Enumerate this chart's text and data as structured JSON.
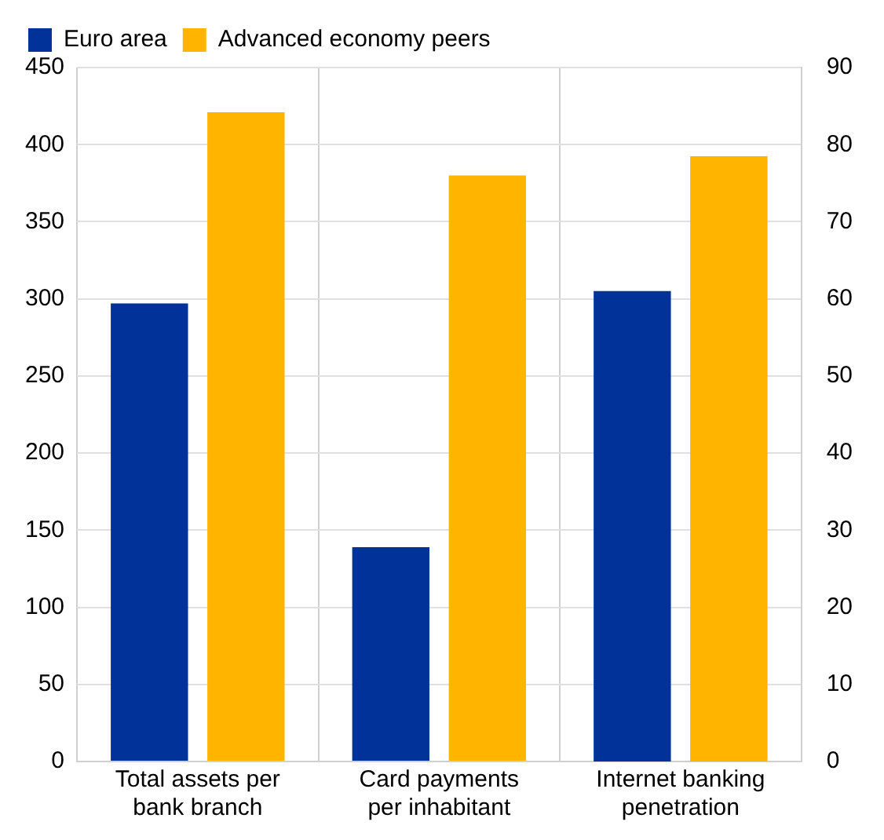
{
  "chart_data": {
    "type": "bar",
    "categories": [
      "Total assets per bank branch",
      "Card payments per inhabitant",
      "Internet banking penetration"
    ],
    "series": [
      {
        "name": "Euro area",
        "color": "#003299",
        "values": [
          297,
          139,
          null
        ]
      },
      {
        "name": "Advanced economy peers",
        "color": "#ffb400",
        "values": [
          421,
          380,
          null
        ]
      },
      {
        "color": "#003299",
        "values": [
          null,
          null,
          61
        ],
        "axis": "y2"
      },
      {
        "color": "#ffb400",
        "values": [
          null,
          null,
          78.5
        ],
        "axis": "y2"
      }
    ],
    "ylim": [
      0,
      450
    ],
    "yticks": [
      0,
      50,
      100,
      150,
      200,
      250,
      300,
      350,
      400,
      450
    ],
    "y2lim": [
      0,
      90
    ],
    "y2ticks": [
      0,
      10,
      20,
      30,
      40,
      50,
      60,
      70,
      80,
      90
    ],
    "grid": true,
    "legend": "top left"
  }
}
